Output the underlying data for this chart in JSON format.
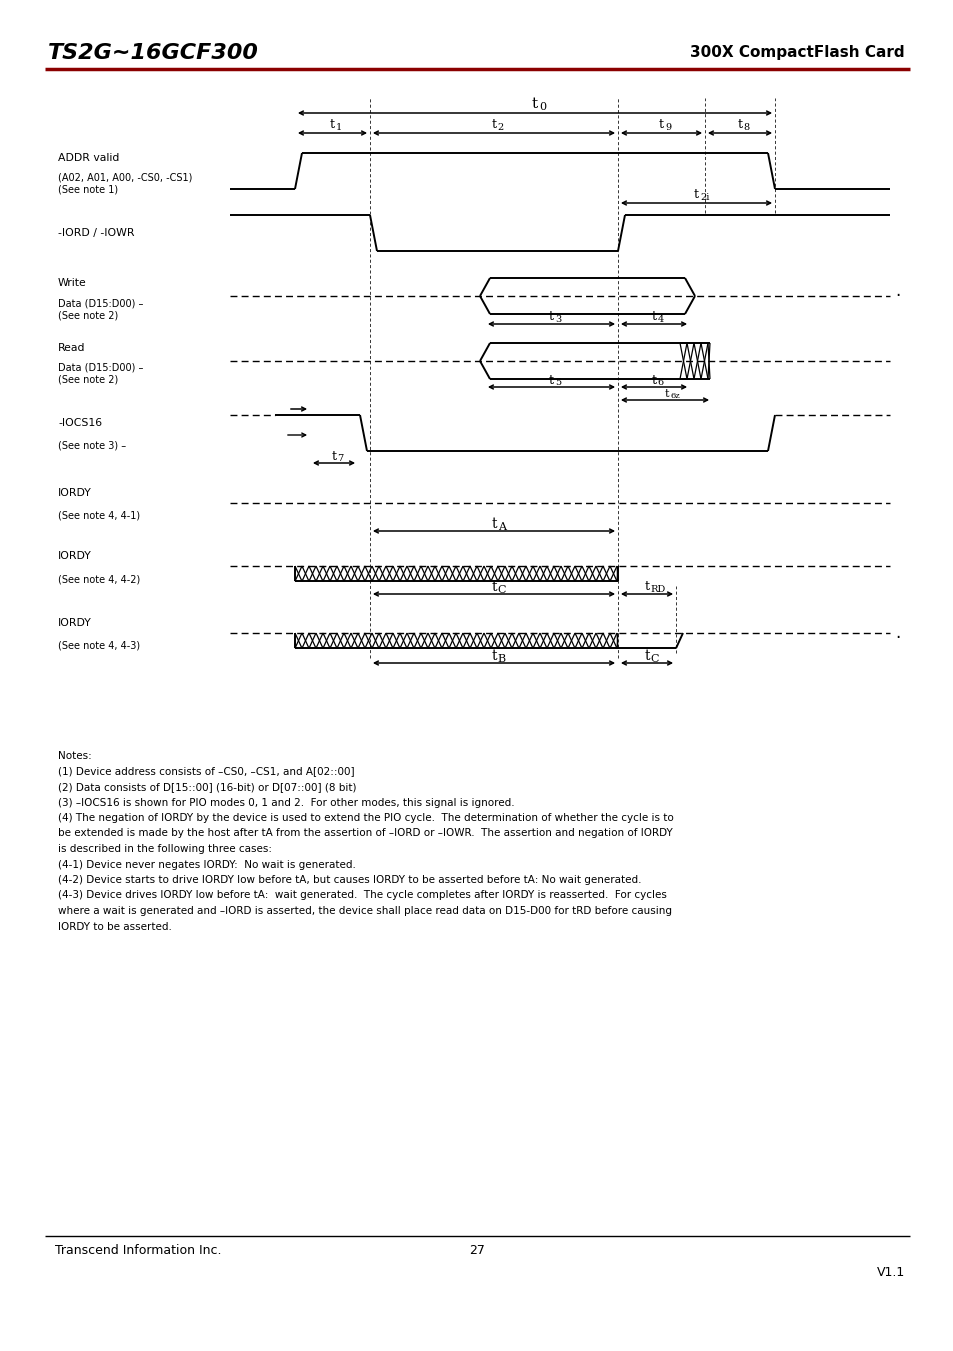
{
  "page_title_left": "TS2G~16GCF300",
  "page_title_right": "300X CompactFlash Card",
  "footer_left": "Transcend Information Inc.",
  "footer_center": "27",
  "footer_right": "V1.1",
  "notes": [
    "Notes:",
    "(1) Device address consists of –CS0, –CS1, and A[02::00]",
    "(2) Data consists of D[15::00] (16-bit) or D[07::00] (8 bit)",
    "(3) –IOCS16 is shown for PIO modes 0, 1 and 2.  For other modes, this signal is ignored.",
    "(4) The negation of IORDY by the device is used to extend the PIO cycle.  The determination of whether the cycle is to",
    "be extended is made by the host after tA from the assertion of –IORD or –IOWR.  The assertion and negation of IORDY",
    "is described in the following three cases:",
    "(4-1) Device never negates IORDY:  No wait is generated.",
    "(4-2) Device starts to drive IORDY low before tA, but causes IORDY to be asserted before tA: No wait generated.",
    "(4-3) Device drives IORDY low before tA:  wait generated.  The cycle completes after IORDY is reasserted.  For cycles",
    "where a wait is generated and –IORD is asserted, the device shall place read data on D15-D00 for tRD before causing",
    "IORDY to be asserted."
  ],
  "bg_color": "#ffffff",
  "rule_color": "#8b0000"
}
